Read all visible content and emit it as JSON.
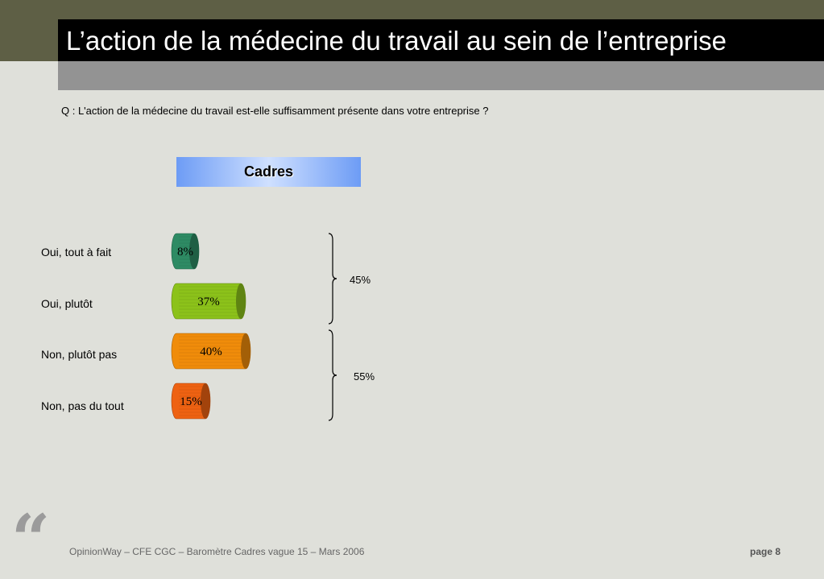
{
  "header": {
    "title": "L’action de la médecine du travail au sein de l’entreprise"
  },
  "question": "Q : L'action de la médecine du travail est-elle suffisamment présente dans votre entreprise ?",
  "chart_data": {
    "type": "bar",
    "title": "Cadres",
    "categories": [
      "Oui, tout à fait",
      "Oui, plutôt",
      "Non, plutôt pas",
      "Non, pas du tout"
    ],
    "series": [
      {
        "name": "Cadres",
        "values": [
          8,
          37,
          40,
          15
        ],
        "value_labels": [
          "8%",
          "37%",
          "40%",
          "15%"
        ],
        "colors": [
          "#2e8b64",
          "#8cc21a",
          "#f08c0a",
          "#ee6212"
        ]
      }
    ],
    "groups": [
      {
        "label": "45%",
        "categories": [
          "Oui, tout à fait",
          "Oui, plutôt"
        ]
      },
      {
        "label": "55%",
        "categories": [
          "Non, plutôt pas",
          "Non, pas du tout"
        ]
      }
    ],
    "orientation": "horizontal",
    "grid": false
  },
  "footer": {
    "source": "OpinionWay – CFE CGC – Baromètre Cadres vague 15 – Mars 2006",
    "page": "page 8",
    "quote_glyph": "“"
  }
}
